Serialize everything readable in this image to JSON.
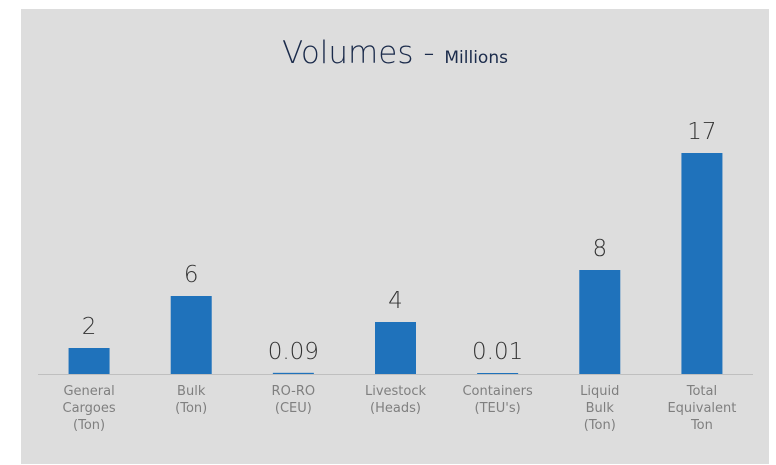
{
  "chart_data": {
    "type": "bar",
    "title": "Volumes - ",
    "subtitle": "Millions",
    "categories": [
      [
        "General",
        "Cargoes",
        "(Ton)"
      ],
      [
        "Bulk",
        "(Ton)"
      ],
      [
        "RO-RO",
        "(CEU)"
      ],
      [
        "Livestock",
        "(Heads)"
      ],
      [
        "Containers",
        "(TEU's)"
      ],
      [
        "Liquid",
        "Bulk",
        "(Ton)"
      ],
      [
        "Total",
        "Equivalent",
        "Ton"
      ]
    ],
    "values": [
      2,
      6,
      0.09,
      4,
      0.01,
      8,
      17
    ],
    "data_labels": [
      "2",
      "6",
      "0.09",
      "4",
      "0.01",
      "8",
      "17"
    ],
    "ylim": [
      0,
      17
    ],
    "grid": false,
    "bar_color": "#1f72bb",
    "background_color": "#dddddd",
    "axis_color": "#bfbfbf",
    "title_color": "#1b2b4b"
  }
}
